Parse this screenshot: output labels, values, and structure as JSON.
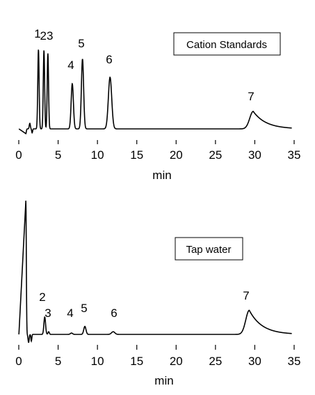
{
  "chart_data": [
    {
      "type": "line",
      "title": "Cation Standards",
      "xlabel": "min",
      "ylabel": "",
      "xlim": [
        0,
        35
      ],
      "x_ticks": [
        0,
        5,
        10,
        15,
        20,
        25,
        30,
        35
      ],
      "grid": false,
      "legend": "top-right",
      "baseline": 0,
      "peaks": [
        {
          "label": "1",
          "x": 2.5,
          "height": 1.0,
          "width": 0.12
        },
        {
          "label": "2",
          "x": 3.2,
          "height": 0.99,
          "width": 0.12
        },
        {
          "label": "3",
          "x": 3.7,
          "height": 0.95,
          "width": 0.12
        },
        {
          "label": "4",
          "x": 6.8,
          "height": 0.57,
          "width": 0.2
        },
        {
          "label": "5",
          "x": 8.1,
          "height": 0.88,
          "width": 0.2
        },
        {
          "label": "6",
          "x": 11.6,
          "height": 0.65,
          "width": 0.3
        },
        {
          "label": "7",
          "x": 29.8,
          "height": 0.22,
          "width": 1.8
        }
      ],
      "peak_label_text": {
        "p1": "1",
        "p23": "23",
        "p4": "4",
        "p5": "5",
        "p6": "6",
        "p7": "7"
      }
    },
    {
      "type": "line",
      "title": "Tap water",
      "xlabel": "min",
      "ylabel": "",
      "xlim": [
        0,
        35
      ],
      "x_ticks": [
        0,
        5,
        10,
        15,
        20,
        25,
        30,
        35
      ],
      "grid": false,
      "legend": "top-right",
      "baseline": 0,
      "peaks": [
        {
          "label": "2",
          "x": 3.3,
          "height": 0.13,
          "width": 0.15
        },
        {
          "label": "3",
          "x": 3.8,
          "height": 0.02,
          "width": 0.12
        },
        {
          "label": "4",
          "x": 6.7,
          "height": 0.01,
          "width": 0.2
        },
        {
          "label": "5",
          "x": 8.4,
          "height": 0.06,
          "width": 0.2
        },
        {
          "label": "6",
          "x": 12.0,
          "height": 0.02,
          "width": 0.3
        },
        {
          "label": "7",
          "x": 29.3,
          "height": 0.18,
          "width": 1.8
        }
      ],
      "peak_label_text": {
        "p2": "2",
        "p3": "3",
        "p4": "4",
        "p5": "5",
        "p6": "6",
        "p7": "7"
      }
    }
  ]
}
